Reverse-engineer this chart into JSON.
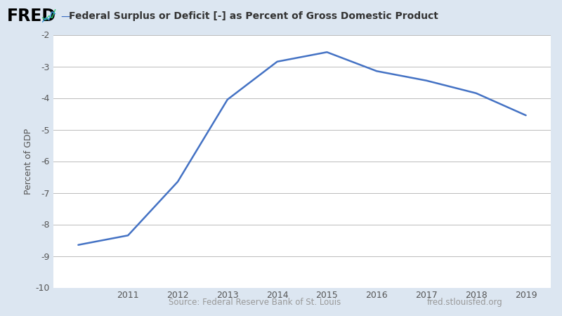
{
  "years": [
    2010,
    2011,
    2012,
    2013,
    2014,
    2015,
    2016,
    2017,
    2018,
    2019
  ],
  "values": [
    -8.65,
    -8.35,
    -6.65,
    -4.05,
    -2.85,
    -2.55,
    -3.15,
    -3.45,
    -3.85,
    -4.55
  ],
  "line_color": "#4472C4",
  "line_width": 1.8,
  "background_color": "#dce6f1",
  "plot_bg_color": "#dce6f1",
  "ylabel": "Percent of GDP",
  "ylim": [
    -10,
    -2
  ],
  "yticks": [
    -10,
    -9,
    -8,
    -7,
    -6,
    -5,
    -4,
    -3,
    -2
  ],
  "xlim": [
    2009.5,
    2019.5
  ],
  "xticks": [
    2011,
    2012,
    2013,
    2014,
    2015,
    2016,
    2017,
    2018,
    2019
  ],
  "title_text": "Federal Surplus or Deficit [-] as Percent of Gross Domestic Product",
  "source_text": "Source: Federal Reserve Bank of St. Louis",
  "url_text": "fred.stlouisfed.org",
  "fred_text": "FRED",
  "title_fontsize": 10,
  "tick_fontsize": 9,
  "ylabel_fontsize": 9,
  "source_fontsize": 8.5,
  "grid_color": "#bbbbbb",
  "axis_color": "#555555",
  "header_bg": "#dce6f1",
  "white_plot_bg": "#ffffff"
}
